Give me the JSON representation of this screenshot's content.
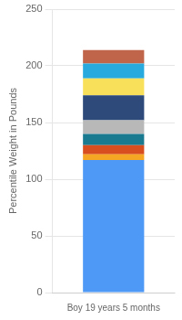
{
  "chart_data": {
    "type": "bar",
    "stacked": true,
    "grid": true,
    "ylabel": "Percentile Weight in Pounds",
    "categories": [
      "Boy 19 years 5 months"
    ],
    "series": [
      {
        "color": "#4d99f5",
        "values": [
          117
        ]
      },
      {
        "color": "#f5a623",
        "values": [
          5
        ]
      },
      {
        "color": "#d94e1f",
        "values": [
          8
        ]
      },
      {
        "color": "#1a7a90",
        "values": [
          10
        ]
      },
      {
        "color": "#b8b8b8",
        "values": [
          12
        ]
      },
      {
        "color": "#2d4a7a",
        "values": [
          22
        ]
      },
      {
        "color": "#f9e05a",
        "values": [
          15
        ]
      },
      {
        "color": "#29aadf",
        "values": [
          13
        ]
      },
      {
        "color": "#c1654a",
        "values": [
          12
        ]
      }
    ],
    "ylim": [
      0,
      250
    ],
    "yticks": [
      0,
      50,
      100,
      150,
      200,
      250
    ]
  }
}
